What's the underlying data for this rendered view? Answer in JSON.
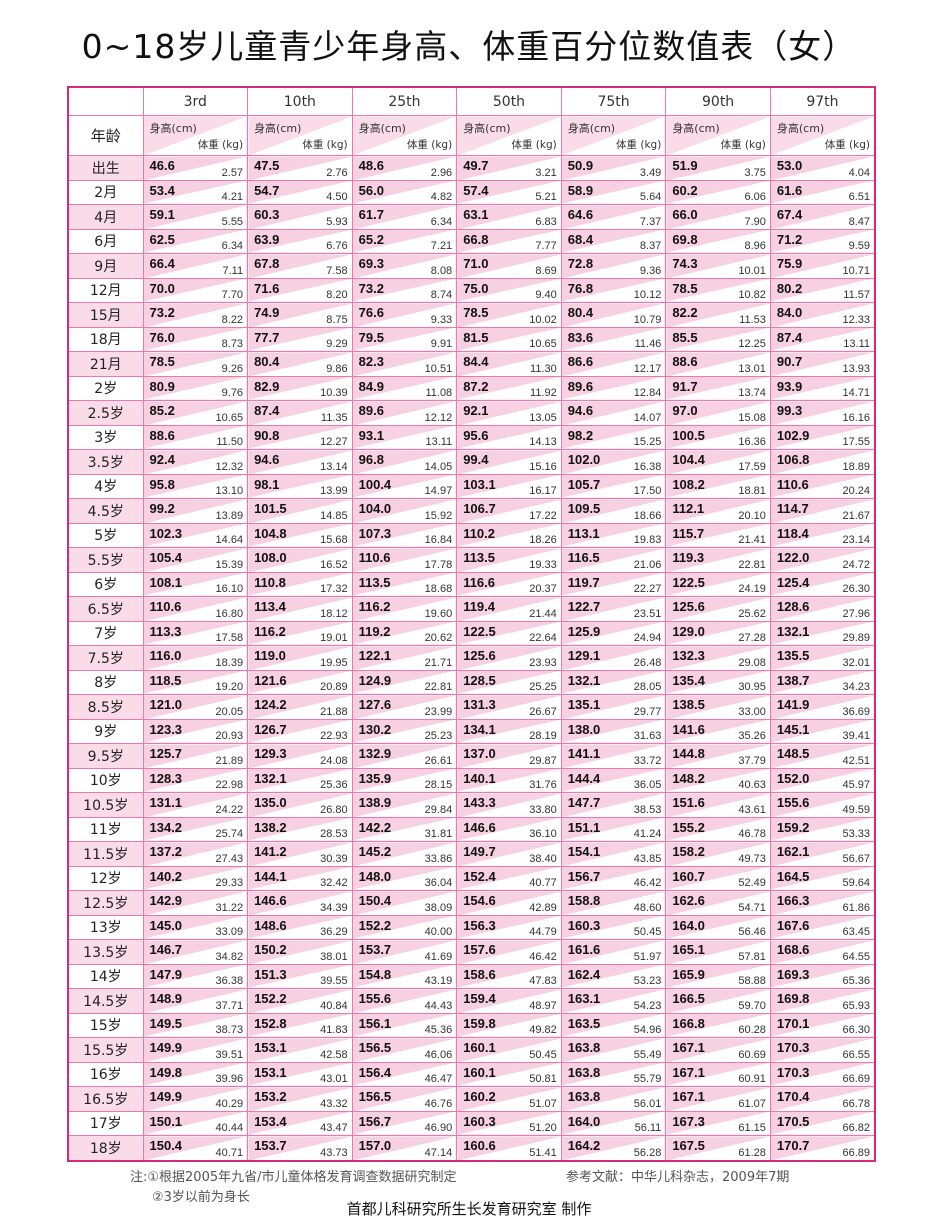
{
  "title": "0~18岁儿童青少年身高、体重百分位数值表（女）",
  "colors": {
    "border": "#d62a80",
    "grid": "#ec79ad",
    "fill": "#f7d0e1"
  },
  "header": {
    "age_label": "年龄",
    "percentiles": [
      "3rd",
      "10th",
      "25th",
      "50th",
      "75th",
      "90th",
      "97th"
    ],
    "height_label": "身高(cm)",
    "weight_label": "体重 (kg)"
  },
  "rows": [
    {
      "age": "出生",
      "h": [
        "46.6",
        "47.5",
        "48.6",
        "49.7",
        "50.9",
        "51.9",
        "53.0"
      ],
      "w": [
        "2.57",
        "2.76",
        "2.96",
        "3.21",
        "3.49",
        "3.75",
        "4.04"
      ]
    },
    {
      "age": "2月",
      "h": [
        "53.4",
        "54.7",
        "56.0",
        "57.4",
        "58.9",
        "60.2",
        "61.6"
      ],
      "w": [
        "4.21",
        "4.50",
        "4.82",
        "5.21",
        "5.64",
        "6.06",
        "6.51"
      ]
    },
    {
      "age": "4月",
      "h": [
        "59.1",
        "60.3",
        "61.7",
        "63.1",
        "64.6",
        "66.0",
        "67.4"
      ],
      "w": [
        "5.55",
        "5.93",
        "6.34",
        "6.83",
        "7.37",
        "7.90",
        "8.47"
      ]
    },
    {
      "age": "6月",
      "h": [
        "62.5",
        "63.9",
        "65.2",
        "66.8",
        "68.4",
        "69.8",
        "71.2"
      ],
      "w": [
        "6.34",
        "6.76",
        "7.21",
        "7.77",
        "8.37",
        "8.96",
        "9.59"
      ]
    },
    {
      "age": "9月",
      "h": [
        "66.4",
        "67.8",
        "69.3",
        "71.0",
        "72.8",
        "74.3",
        "75.9"
      ],
      "w": [
        "7.11",
        "7.58",
        "8.08",
        "8.69",
        "9.36",
        "10.01",
        "10.71"
      ]
    },
    {
      "age": "12月",
      "h": [
        "70.0",
        "71.6",
        "73.2",
        "75.0",
        "76.8",
        "78.5",
        "80.2"
      ],
      "w": [
        "7.70",
        "8.20",
        "8.74",
        "9.40",
        "10.12",
        "10.82",
        "11.57"
      ]
    },
    {
      "age": "15月",
      "h": [
        "73.2",
        "74.9",
        "76.6",
        "78.5",
        "80.4",
        "82.2",
        "84.0"
      ],
      "w": [
        "8.22",
        "8.75",
        "9.33",
        "10.02",
        "10.79",
        "11.53",
        "12.33"
      ]
    },
    {
      "age": "18月",
      "h": [
        "76.0",
        "77.7",
        "79.5",
        "81.5",
        "83.6",
        "85.5",
        "87.4"
      ],
      "w": [
        "8.73",
        "9.29",
        "9.91",
        "10.65",
        "11.46",
        "12.25",
        "13.11"
      ]
    },
    {
      "age": "21月",
      "h": [
        "78.5",
        "80.4",
        "82.3",
        "84.4",
        "86.6",
        "88.6",
        "90.7"
      ],
      "w": [
        "9.26",
        "9.86",
        "10.51",
        "11.30",
        "12.17",
        "13.01",
        "13.93"
      ]
    },
    {
      "age": "2岁",
      "h": [
        "80.9",
        "82.9",
        "84.9",
        "87.2",
        "89.6",
        "91.7",
        "93.9"
      ],
      "w": [
        "9.76",
        "10.39",
        "11.08",
        "11.92",
        "12.84",
        "13.74",
        "14.71"
      ]
    },
    {
      "age": "2.5岁",
      "h": [
        "85.2",
        "87.4",
        "89.6",
        "92.1",
        "94.6",
        "97.0",
        "99.3"
      ],
      "w": [
        "10.65",
        "11.35",
        "12.12",
        "13.05",
        "14.07",
        "15.08",
        "16.16"
      ]
    },
    {
      "age": "3岁",
      "h": [
        "88.6",
        "90.8",
        "93.1",
        "95.6",
        "98.2",
        "100.5",
        "102.9"
      ],
      "w": [
        "11.50",
        "12.27",
        "13.11",
        "14.13",
        "15.25",
        "16.36",
        "17.55"
      ]
    },
    {
      "age": "3.5岁",
      "h": [
        "92.4",
        "94.6",
        "96.8",
        "99.4",
        "102.0",
        "104.4",
        "106.8"
      ],
      "w": [
        "12.32",
        "13.14",
        "14.05",
        "15.16",
        "16.38",
        "17.59",
        "18.89"
      ]
    },
    {
      "age": "4岁",
      "h": [
        "95.8",
        "98.1",
        "100.4",
        "103.1",
        "105.7",
        "108.2",
        "110.6"
      ],
      "w": [
        "13.10",
        "13.99",
        "14.97",
        "16.17",
        "17.50",
        "18.81",
        "20.24"
      ]
    },
    {
      "age": "4.5岁",
      "h": [
        "99.2",
        "101.5",
        "104.0",
        "106.7",
        "109.5",
        "112.1",
        "114.7"
      ],
      "w": [
        "13.89",
        "14.85",
        "15.92",
        "17.22",
        "18.66",
        "20.10",
        "21.67"
      ]
    },
    {
      "age": "5岁",
      "h": [
        "102.3",
        "104.8",
        "107.3",
        "110.2",
        "113.1",
        "115.7",
        "118.4"
      ],
      "w": [
        "14.64",
        "15.68",
        "16.84",
        "18.26",
        "19.83",
        "21.41",
        "23.14"
      ]
    },
    {
      "age": "5.5岁",
      "h": [
        "105.4",
        "108.0",
        "110.6",
        "113.5",
        "116.5",
        "119.3",
        "122.0"
      ],
      "w": [
        "15.39",
        "16.52",
        "17.78",
        "19.33",
        "21.06",
        "22.81",
        "24.72"
      ]
    },
    {
      "age": "6岁",
      "h": [
        "108.1",
        "110.8",
        "113.5",
        "116.6",
        "119.7",
        "122.5",
        "125.4"
      ],
      "w": [
        "16.10",
        "17.32",
        "18.68",
        "20.37",
        "22.27",
        "24.19",
        "26.30"
      ]
    },
    {
      "age": "6.5岁",
      "h": [
        "110.6",
        "113.4",
        "116.2",
        "119.4",
        "122.7",
        "125.6",
        "128.6"
      ],
      "w": [
        "16.80",
        "18.12",
        "19.60",
        "21.44",
        "23.51",
        "25.62",
        "27.96"
      ]
    },
    {
      "age": "7岁",
      "h": [
        "113.3",
        "116.2",
        "119.2",
        "122.5",
        "125.9",
        "129.0",
        "132.1"
      ],
      "w": [
        "17.58",
        "19.01",
        "20.62",
        "22.64",
        "24.94",
        "27.28",
        "29.89"
      ]
    },
    {
      "age": "7.5岁",
      "h": [
        "116.0",
        "119.0",
        "122.1",
        "125.6",
        "129.1",
        "132.3",
        "135.5"
      ],
      "w": [
        "18.39",
        "19.95",
        "21.71",
        "23.93",
        "26.48",
        "29.08",
        "32.01"
      ]
    },
    {
      "age": "8岁",
      "h": [
        "118.5",
        "121.6",
        "124.9",
        "128.5",
        "132.1",
        "135.4",
        "138.7"
      ],
      "w": [
        "19.20",
        "20.89",
        "22.81",
        "25.25",
        "28.05",
        "30.95",
        "34.23"
      ]
    },
    {
      "age": "8.5岁",
      "h": [
        "121.0",
        "124.2",
        "127.6",
        "131.3",
        "135.1",
        "138.5",
        "141.9"
      ],
      "w": [
        "20.05",
        "21.88",
        "23.99",
        "26.67",
        "29.77",
        "33.00",
        "36.69"
      ]
    },
    {
      "age": "9岁",
      "h": [
        "123.3",
        "126.7",
        "130.2",
        "134.1",
        "138.0",
        "141.6",
        "145.1"
      ],
      "w": [
        "20.93",
        "22.93",
        "25.23",
        "28.19",
        "31.63",
        "35.26",
        "39.41"
      ]
    },
    {
      "age": "9.5岁",
      "h": [
        "125.7",
        "129.3",
        "132.9",
        "137.0",
        "141.1",
        "144.8",
        "148.5"
      ],
      "w": [
        "21.89",
        "24.08",
        "26.61",
        "29.87",
        "33.72",
        "37.79",
        "42.51"
      ]
    },
    {
      "age": "10岁",
      "h": [
        "128.3",
        "132.1",
        "135.9",
        "140.1",
        "144.4",
        "148.2",
        "152.0"
      ],
      "w": [
        "22.98",
        "25.36",
        "28.15",
        "31.76",
        "36.05",
        "40.63",
        "45.97"
      ]
    },
    {
      "age": "10.5岁",
      "h": [
        "131.1",
        "135.0",
        "138.9",
        "143.3",
        "147.7",
        "151.6",
        "155.6"
      ],
      "w": [
        "24.22",
        "26.80",
        "29.84",
        "33.80",
        "38.53",
        "43.61",
        "49.59"
      ]
    },
    {
      "age": "11岁",
      "h": [
        "134.2",
        "138.2",
        "142.2",
        "146.6",
        "151.1",
        "155.2",
        "159.2"
      ],
      "w": [
        "25.74",
        "28.53",
        "31.81",
        "36.10",
        "41.24",
        "46.78",
        "53.33"
      ]
    },
    {
      "age": "11.5岁",
      "h": [
        "137.2",
        "141.2",
        "145.2",
        "149.7",
        "154.1",
        "158.2",
        "162.1"
      ],
      "w": [
        "27.43",
        "30.39",
        "33.86",
        "38.40",
        "43.85",
        "49.73",
        "56.67"
      ]
    },
    {
      "age": "12岁",
      "h": [
        "140.2",
        "144.1",
        "148.0",
        "152.4",
        "156.7",
        "160.7",
        "164.5"
      ],
      "w": [
        "29.33",
        "32.42",
        "36.04",
        "40.77",
        "46.42",
        "52.49",
        "59.64"
      ]
    },
    {
      "age": "12.5岁",
      "h": [
        "142.9",
        "146.6",
        "150.4",
        "154.6",
        "158.8",
        "162.6",
        "166.3"
      ],
      "w": [
        "31.22",
        "34.39",
        "38.09",
        "42.89",
        "48.60",
        "54.71",
        "61.86"
      ]
    },
    {
      "age": "13岁",
      "h": [
        "145.0",
        "148.6",
        "152.2",
        "156.3",
        "160.3",
        "164.0",
        "167.6"
      ],
      "w": [
        "33.09",
        "36.29",
        "40.00",
        "44.79",
        "50.45",
        "56.46",
        "63.45"
      ]
    },
    {
      "age": "13.5岁",
      "h": [
        "146.7",
        "150.2",
        "153.7",
        "157.6",
        "161.6",
        "165.1",
        "168.6"
      ],
      "w": [
        "34.82",
        "38.01",
        "41.69",
        "46.42",
        "51.97",
        "57.81",
        "64.55"
      ]
    },
    {
      "age": "14岁",
      "h": [
        "147.9",
        "151.3",
        "154.8",
        "158.6",
        "162.4",
        "165.9",
        "169.3"
      ],
      "w": [
        "36.38",
        "39.55",
        "43.19",
        "47.83",
        "53.23",
        "58.88",
        "65.36"
      ]
    },
    {
      "age": "14.5岁",
      "h": [
        "148.9",
        "152.2",
        "155.6",
        "159.4",
        "163.1",
        "166.5",
        "169.8"
      ],
      "w": [
        "37.71",
        "40.84",
        "44.43",
        "48.97",
        "54.23",
        "59.70",
        "65.93"
      ]
    },
    {
      "age": "15岁",
      "h": [
        "149.5",
        "152.8",
        "156.1",
        "159.8",
        "163.5",
        "166.8",
        "170.1"
      ],
      "w": [
        "38.73",
        "41.83",
        "45.36",
        "49.82",
        "54.96",
        "60.28",
        "66.30"
      ]
    },
    {
      "age": "15.5岁",
      "h": [
        "149.9",
        "153.1",
        "156.5",
        "160.1",
        "163.8",
        "167.1",
        "170.3"
      ],
      "w": [
        "39.51",
        "42.58",
        "46.06",
        "50.45",
        "55.49",
        "60.69",
        "66.55"
      ]
    },
    {
      "age": "16岁",
      "h": [
        "149.8",
        "153.1",
        "156.4",
        "160.1",
        "163.8",
        "167.1",
        "170.3"
      ],
      "w": [
        "39.96",
        "43.01",
        "46.47",
        "50.81",
        "55.79",
        "60.91",
        "66.69"
      ]
    },
    {
      "age": "16.5岁",
      "h": [
        "149.9",
        "153.2",
        "156.5",
        "160.2",
        "163.8",
        "167.1",
        "170.4"
      ],
      "w": [
        "40.29",
        "43.32",
        "46.76",
        "51.07",
        "56.01",
        "61.07",
        "66.78"
      ]
    },
    {
      "age": "17岁",
      "h": [
        "150.1",
        "153.4",
        "156.7",
        "160.3",
        "164.0",
        "167.3",
        "170.5"
      ],
      "w": [
        "40.44",
        "43.47",
        "46.90",
        "51.20",
        "56.11",
        "61.15",
        "66.82"
      ]
    },
    {
      "age": "18岁",
      "h": [
        "150.4",
        "153.7",
        "157.0",
        "160.6",
        "164.2",
        "167.5",
        "170.7"
      ],
      "w": [
        "40.71",
        "43.73",
        "47.14",
        "51.41",
        "56.28",
        "61.28",
        "66.89"
      ]
    }
  ],
  "footer": {
    "note1": "注:①根据2005年九省/市儿童体格发育调查数据研究制定",
    "note2": "②3岁以前为身长",
    "reference": "参考文献：中华儿科杂志，2009年7期",
    "maker": "首都儿科研究所生长发育研究室  制作"
  }
}
